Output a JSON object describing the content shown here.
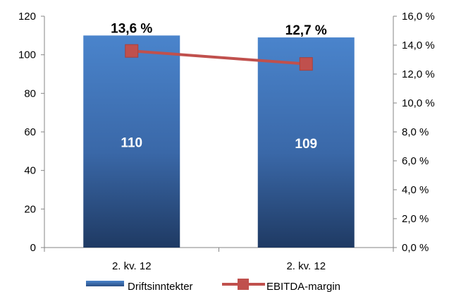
{
  "chart_data": {
    "type": "bar",
    "categories": [
      "2. kv. 12",
      "2. kv. 12"
    ],
    "series": [
      {
        "name": "Driftsinntekter",
        "type": "bar",
        "axis": "left",
        "values": [
          110,
          109
        ],
        "value_labels": [
          "110",
          "109"
        ],
        "color": "#3f73b8"
      },
      {
        "name": "EBITDA-margin",
        "type": "line",
        "axis": "right",
        "values": [
          13.6,
          12.7
        ],
        "value_labels": [
          "13,6 %",
          "12,7 %"
        ],
        "color": "#c0504d"
      }
    ],
    "y_left": {
      "min": 0,
      "max": 120,
      "step": 20,
      "tick_labels": [
        "0",
        "20",
        "40",
        "60",
        "80",
        "100",
        "120"
      ]
    },
    "y_right": {
      "min": 0,
      "max": 16,
      "step": 2,
      "tick_labels": [
        "0,0 %",
        "2,0 %",
        "4,0 %",
        "6,0 %",
        "8,0 %",
        "10,0 %",
        "12,0 %",
        "14,0 %",
        "16,0 %"
      ]
    },
    "grid": false,
    "legend_position": "bottom"
  }
}
